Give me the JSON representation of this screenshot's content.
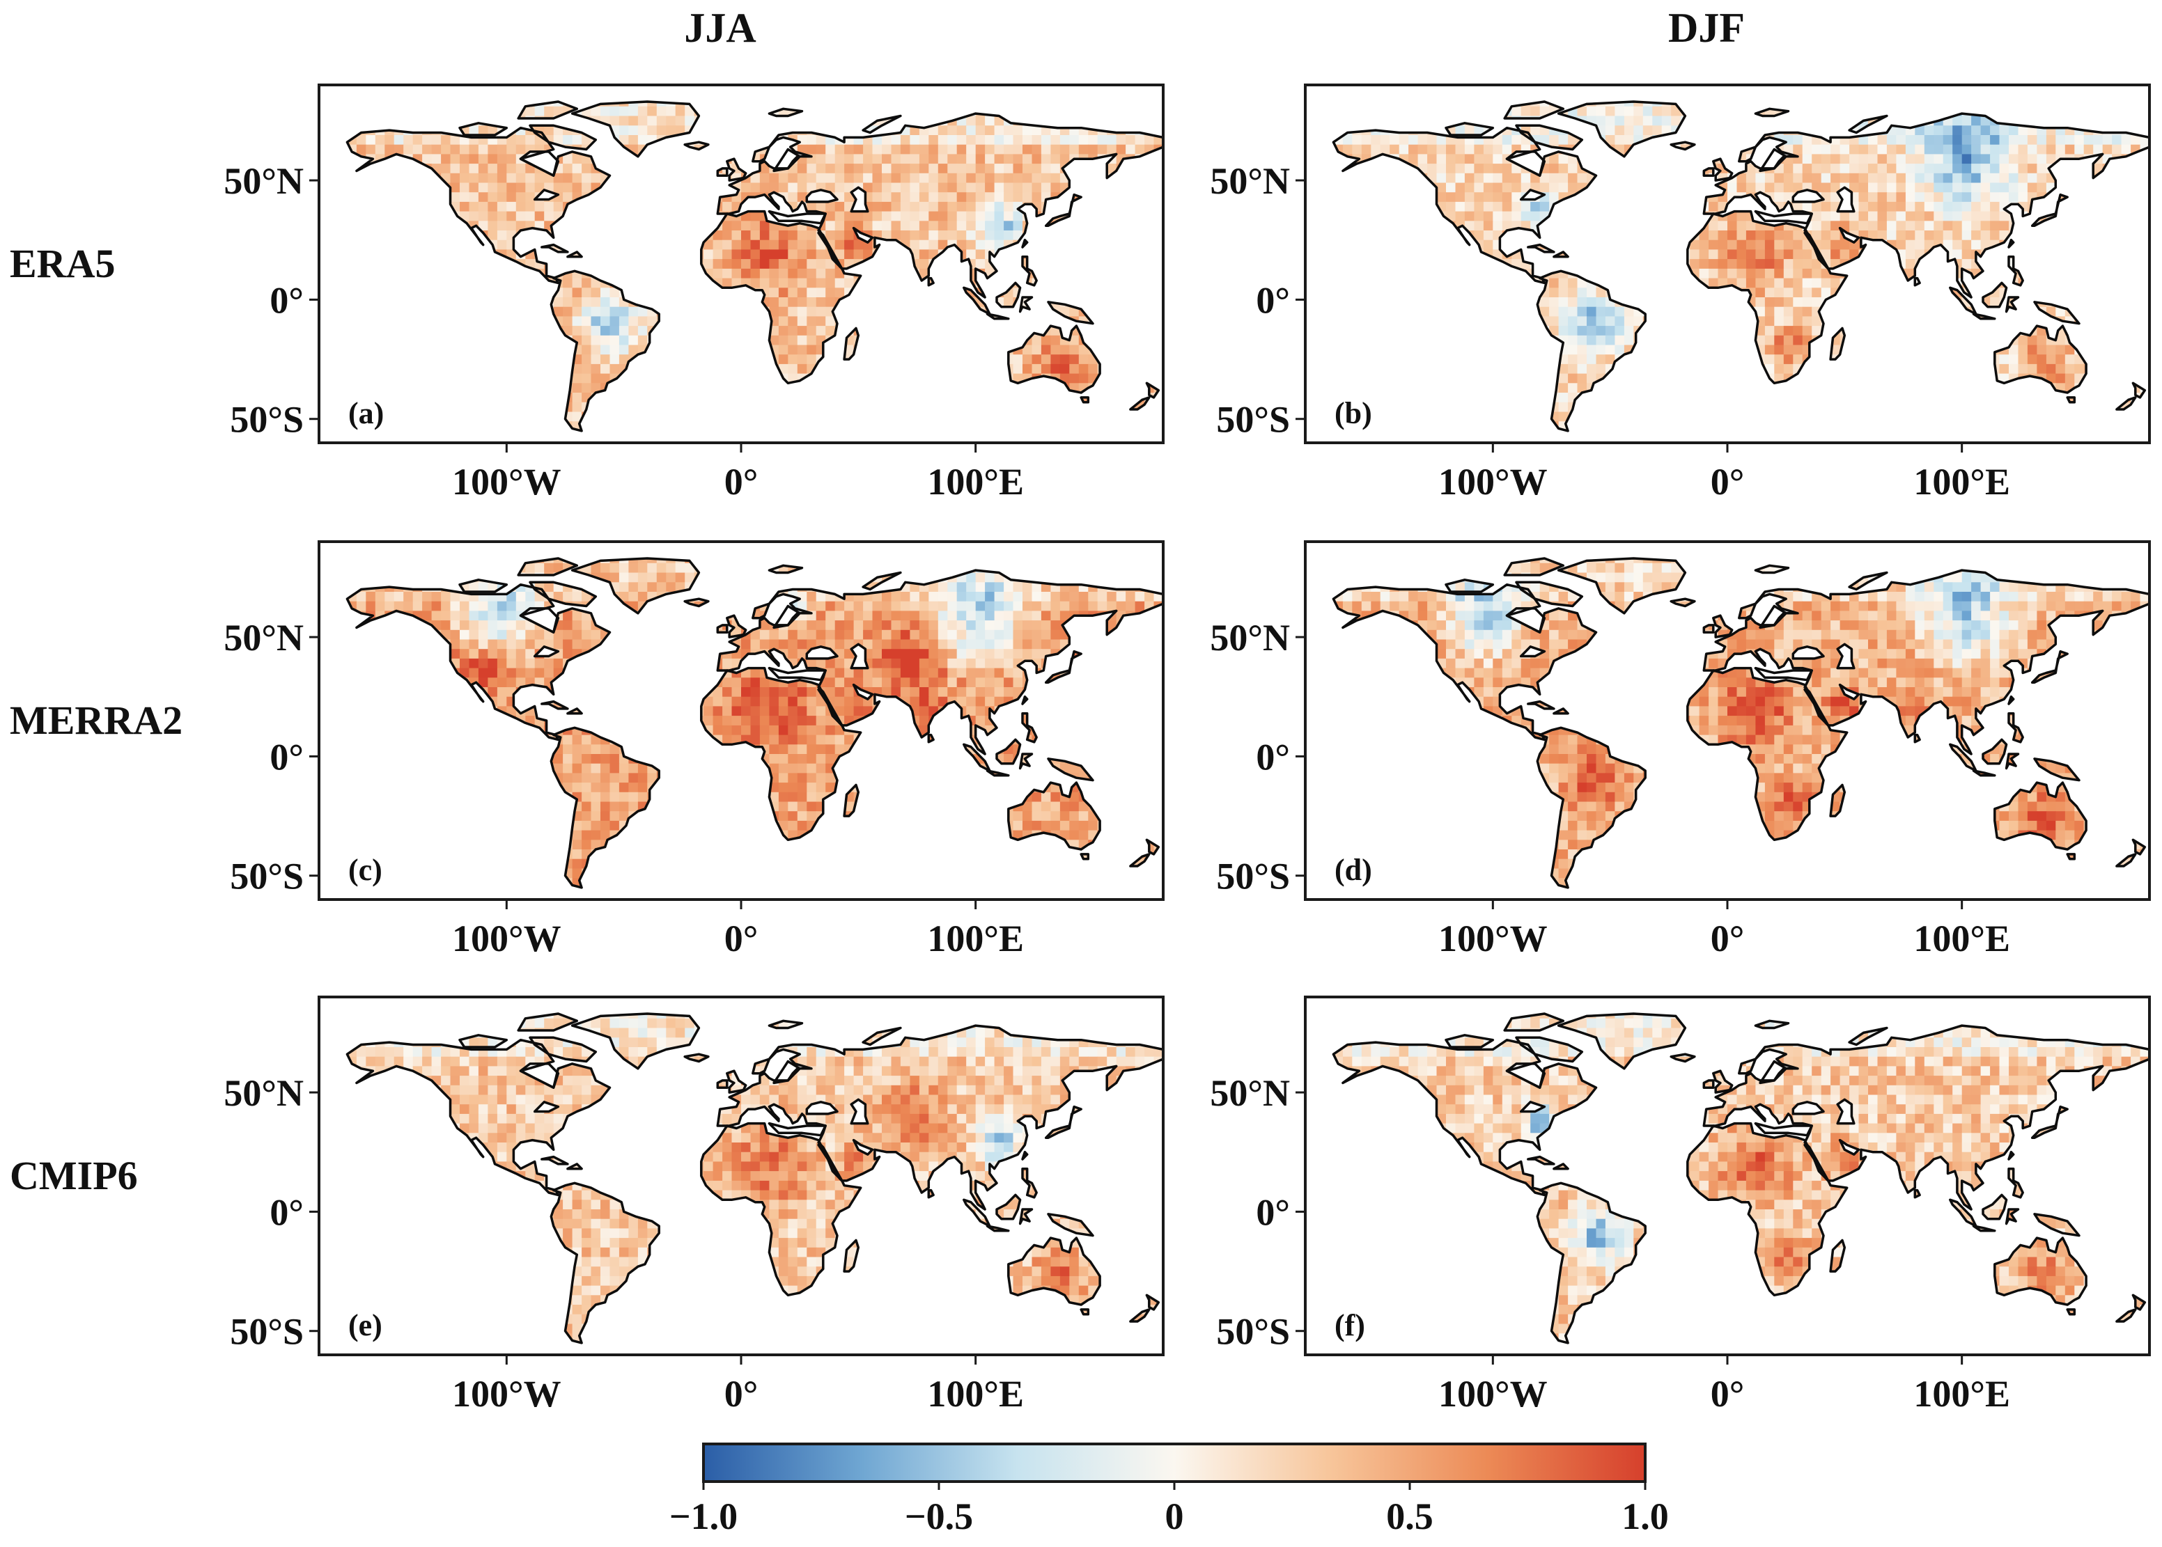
{
  "figure": {
    "columns": [
      {
        "id": "col-jja",
        "title": "JJA"
      },
      {
        "id": "col-djf",
        "title": "DJF"
      }
    ],
    "rows": [
      {
        "id": "row-era5",
        "label": "ERA5"
      },
      {
        "id": "row-merra2",
        "label": "MERRA2"
      },
      {
        "id": "row-cmip6",
        "label": "CMIP6"
      }
    ],
    "panels": [
      {
        "label": "(a)",
        "row": 0,
        "col": 0,
        "dataset": "ERA5",
        "season": "JJA",
        "seed": 11,
        "tone": {
          "base": 0.32,
          "blue": [
            "south_america",
            "east_asia"
          ],
          "warm": [
            "sahara",
            "arabia",
            "australia"
          ]
        }
      },
      {
        "label": "(b)",
        "row": 0,
        "col": 1,
        "dataset": "ERA5",
        "season": "DJF",
        "seed": 23,
        "tone": {
          "base": 0.22,
          "blue": [
            "south_america",
            "north_america_east",
            "siberia"
          ],
          "warm": [
            "sahara",
            "arabia",
            "southern_africa",
            "australia"
          ]
        }
      },
      {
        "label": "(c)",
        "row": 1,
        "col": 0,
        "dataset": "MERRA2",
        "season": "JJA",
        "seed": 37,
        "tone": {
          "base": 0.5,
          "blue": [
            "canada",
            "scandinavia",
            "siberia"
          ],
          "warm": [
            "sahara",
            "arabia",
            "india",
            "central_asia",
            "north_america_west"
          ]
        }
      },
      {
        "label": "(d)",
        "row": 1,
        "col": 1,
        "dataset": "MERRA2",
        "season": "DJF",
        "seed": 41,
        "tone": {
          "base": 0.42,
          "blue": [
            "siberia",
            "canada"
          ],
          "warm": [
            "sahara",
            "arabia",
            "south_america",
            "southern_africa",
            "australia",
            "india"
          ]
        }
      },
      {
        "label": "(e)",
        "row": 2,
        "col": 0,
        "dataset": "CMIP6",
        "season": "JJA",
        "seed": 53,
        "tone": {
          "base": 0.3,
          "blue": [
            "east_asia"
          ],
          "warm": [
            "sahara",
            "arabia",
            "australia",
            "central_asia"
          ]
        }
      },
      {
        "label": "(f)",
        "row": 2,
        "col": 1,
        "dataset": "CMIP6",
        "season": "DJF",
        "seed": 67,
        "tone": {
          "base": 0.28,
          "blue": [
            "south_america",
            "north_america_east"
          ],
          "warm": [
            "sahara",
            "arabia",
            "australia",
            "southern_africa"
          ]
        }
      }
    ],
    "axes": {
      "lon_range": [
        -180,
        180
      ],
      "lat_range": [
        -60,
        90
      ],
      "x_ticks": [
        {
          "value": -100,
          "label": "100°W"
        },
        {
          "value": 0,
          "label": "0°"
        },
        {
          "value": 100,
          "label": "100°E"
        }
      ],
      "y_ticks": [
        {
          "value": 50,
          "label": "50°N"
        },
        {
          "value": 0,
          "label": "0°"
        },
        {
          "value": -50,
          "label": "50°S"
        }
      ]
    },
    "colorbar": {
      "range": [
        -1.0,
        1.0
      ],
      "ticks": [
        {
          "value": -1.0,
          "label": "−1.0"
        },
        {
          "value": -0.5,
          "label": "−0.5"
        },
        {
          "value": 0,
          "label": "0"
        },
        {
          "value": 0.5,
          "label": "0.5"
        },
        {
          "value": 1.0,
          "label": "1.0"
        }
      ],
      "colormap": [
        "#2b5ea7",
        "#6fa6d2",
        "#c7e3ef",
        "#fbf7f0",
        "#f7c59a",
        "#ec8a56",
        "#d6402c"
      ]
    },
    "colors": {
      "coastline": "#0d0d0d",
      "ocean": "#ffffff",
      "frame": "#1a1a1a"
    }
  }
}
